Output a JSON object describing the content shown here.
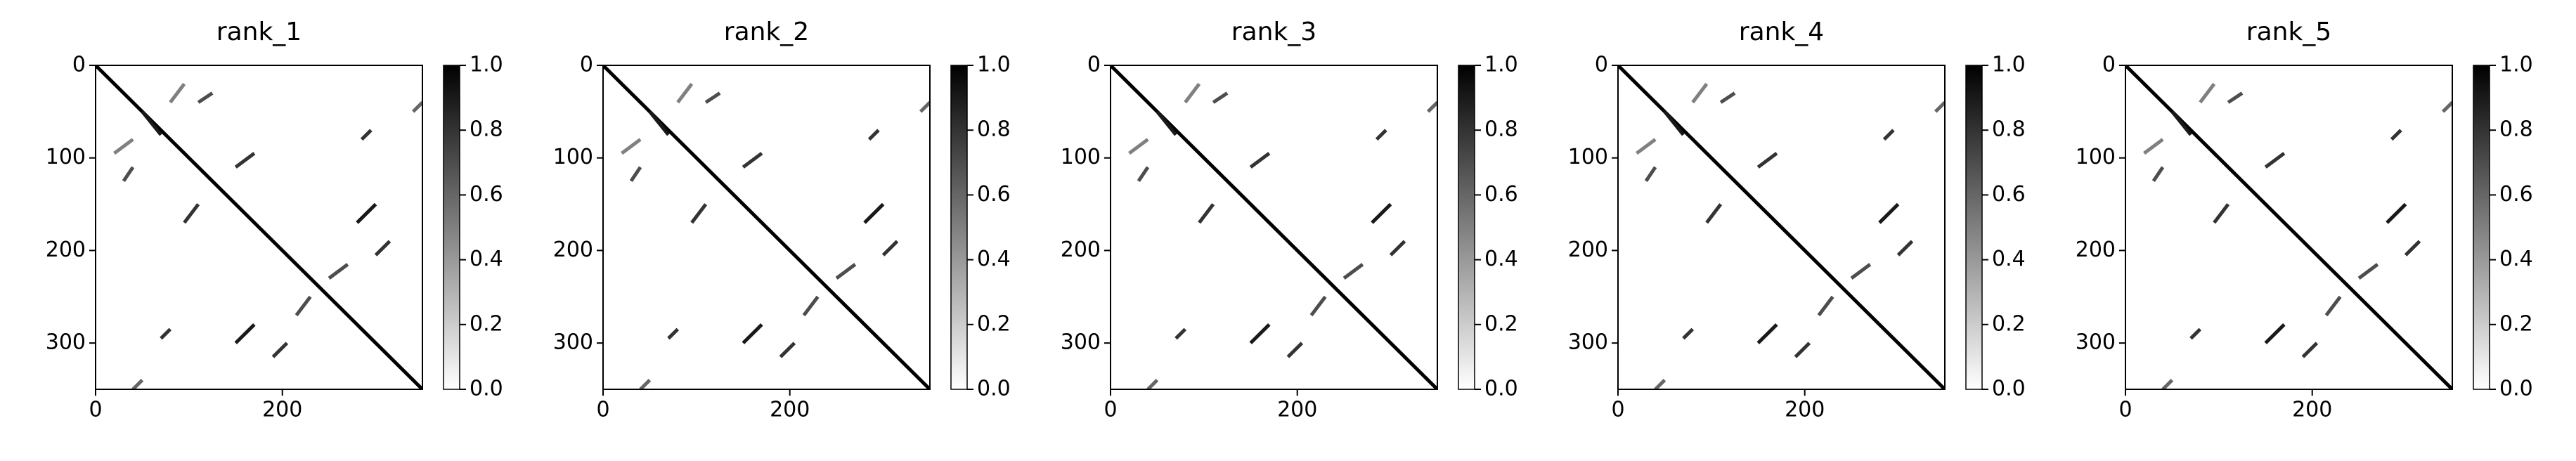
{
  "chart_data": [
    {
      "type": "heatmap",
      "title": "rank_1",
      "xlim": [
        0,
        350
      ],
      "ylim": [
        350,
        0
      ],
      "xticks": [
        0,
        200
      ],
      "yticks": [
        0,
        100,
        200,
        300
      ],
      "clim": [
        0,
        1
      ],
      "cticks": [
        {
          "value": 0,
          "label": "0.0"
        },
        0.2,
        0.4,
        0.6,
        0.8,
        {
          "value": 1,
          "label": "1.0"
        }
      ],
      "cmap": "Greys",
      "segments": [
        {
          "x": [
            0,
            350
          ],
          "y": [
            0,
            350
          ],
          "value": 1
        },
        {
          "x": [
            50,
            70
          ],
          "y": [
            50,
            75
          ],
          "value": 0.9
        },
        {
          "x": [
            20,
            40
          ],
          "y": [
            95,
            80
          ],
          "value": 0.5
        },
        {
          "x": [
            80,
            95
          ],
          "y": [
            40,
            20
          ],
          "value": 0.5
        },
        {
          "x": [
            110,
            125
          ],
          "y": [
            40,
            30
          ],
          "value": 0.7
        },
        {
          "x": [
            30,
            40
          ],
          "y": [
            125,
            110
          ],
          "value": 0.7
        },
        {
          "x": [
            150,
            170
          ],
          "y": [
            110,
            95
          ],
          "value": 0.8
        },
        {
          "x": [
            95,
            110
          ],
          "y": [
            170,
            150
          ],
          "value": 0.8
        },
        {
          "x": [
            280,
            300
          ],
          "y": [
            170,
            150
          ],
          "value": 0.9
        },
        {
          "x": [
            150,
            170
          ],
          "y": [
            300,
            280
          ],
          "value": 0.9
        },
        {
          "x": [
            300,
            315
          ],
          "y": [
            205,
            190
          ],
          "value": 0.8
        },
        {
          "x": [
            190,
            205
          ],
          "y": [
            315,
            300
          ],
          "value": 0.8
        },
        {
          "x": [
            285,
            295
          ],
          "y": [
            80,
            70
          ],
          "value": 0.8
        },
        {
          "x": [
            70,
            80
          ],
          "y": [
            295,
            285
          ],
          "value": 0.8
        },
        {
          "x": [
            340,
            350
          ],
          "y": [
            50,
            40
          ],
          "value": 0.6
        },
        {
          "x": [
            40,
            50
          ],
          "y": [
            350,
            340
          ],
          "value": 0.6
        },
        {
          "x": [
            250,
            270
          ],
          "y": [
            230,
            215
          ],
          "value": 0.7
        },
        {
          "x": [
            215,
            230
          ],
          "y": [
            270,
            250
          ],
          "value": 0.7
        }
      ]
    },
    {
      "type": "heatmap",
      "title": "rank_2",
      "xlim": [
        0,
        350
      ],
      "ylim": [
        350,
        0
      ],
      "xticks": [
        0,
        200
      ],
      "yticks": [
        0,
        100,
        200,
        300
      ],
      "clim": [
        0,
        1
      ],
      "cticks": [
        {
          "value": 0,
          "label": "0.0"
        },
        0.2,
        0.4,
        0.6,
        0.8,
        {
          "value": 1,
          "label": "1.0"
        }
      ],
      "cmap": "Greys",
      "segments": [
        {
          "x": [
            0,
            350
          ],
          "y": [
            0,
            350
          ],
          "value": 1
        },
        {
          "x": [
            50,
            70
          ],
          "y": [
            50,
            75
          ],
          "value": 0.9
        },
        {
          "x": [
            20,
            40
          ],
          "y": [
            95,
            80
          ],
          "value": 0.5
        },
        {
          "x": [
            80,
            95
          ],
          "y": [
            40,
            20
          ],
          "value": 0.5
        },
        {
          "x": [
            110,
            125
          ],
          "y": [
            40,
            30
          ],
          "value": 0.7
        },
        {
          "x": [
            30,
            40
          ],
          "y": [
            125,
            110
          ],
          "value": 0.7
        },
        {
          "x": [
            150,
            170
          ],
          "y": [
            110,
            95
          ],
          "value": 0.8
        },
        {
          "x": [
            95,
            110
          ],
          "y": [
            170,
            150
          ],
          "value": 0.8
        },
        {
          "x": [
            280,
            300
          ],
          "y": [
            170,
            150
          ],
          "value": 0.9
        },
        {
          "x": [
            150,
            170
          ],
          "y": [
            300,
            280
          ],
          "value": 0.9
        },
        {
          "x": [
            300,
            315
          ],
          "y": [
            205,
            190
          ],
          "value": 0.8
        },
        {
          "x": [
            190,
            205
          ],
          "y": [
            315,
            300
          ],
          "value": 0.8
        },
        {
          "x": [
            285,
            295
          ],
          "y": [
            80,
            70
          ],
          "value": 0.8
        },
        {
          "x": [
            70,
            80
          ],
          "y": [
            295,
            285
          ],
          "value": 0.8
        },
        {
          "x": [
            340,
            350
          ],
          "y": [
            50,
            40
          ],
          "value": 0.6
        },
        {
          "x": [
            40,
            50
          ],
          "y": [
            350,
            340
          ],
          "value": 0.6
        },
        {
          "x": [
            250,
            270
          ],
          "y": [
            230,
            215
          ],
          "value": 0.7
        },
        {
          "x": [
            215,
            230
          ],
          "y": [
            270,
            250
          ],
          "value": 0.7
        }
      ]
    },
    {
      "type": "heatmap",
      "title": "rank_3",
      "xlim": [
        0,
        350
      ],
      "ylim": [
        350,
        0
      ],
      "xticks": [
        0,
        200
      ],
      "yticks": [
        0,
        100,
        200,
        300
      ],
      "clim": [
        0,
        1
      ],
      "cticks": [
        {
          "value": 0,
          "label": "0.0"
        },
        0.2,
        0.4,
        0.6,
        0.8,
        {
          "value": 1,
          "label": "1.0"
        }
      ],
      "cmap": "Greys",
      "segments": [
        {
          "x": [
            0,
            350
          ],
          "y": [
            0,
            350
          ],
          "value": 1
        },
        {
          "x": [
            50,
            70
          ],
          "y": [
            50,
            75
          ],
          "value": 0.9
        },
        {
          "x": [
            20,
            40
          ],
          "y": [
            95,
            80
          ],
          "value": 0.5
        },
        {
          "x": [
            80,
            95
          ],
          "y": [
            40,
            20
          ],
          "value": 0.5
        },
        {
          "x": [
            110,
            125
          ],
          "y": [
            40,
            30
          ],
          "value": 0.7
        },
        {
          "x": [
            30,
            40
          ],
          "y": [
            125,
            110
          ],
          "value": 0.7
        },
        {
          "x": [
            150,
            170
          ],
          "y": [
            110,
            95
          ],
          "value": 0.8
        },
        {
          "x": [
            95,
            110
          ],
          "y": [
            170,
            150
          ],
          "value": 0.8
        },
        {
          "x": [
            280,
            300
          ],
          "y": [
            170,
            150
          ],
          "value": 0.9
        },
        {
          "x": [
            150,
            170
          ],
          "y": [
            300,
            280
          ],
          "value": 0.9
        },
        {
          "x": [
            300,
            315
          ],
          "y": [
            205,
            190
          ],
          "value": 0.8
        },
        {
          "x": [
            190,
            205
          ],
          "y": [
            315,
            300
          ],
          "value": 0.8
        },
        {
          "x": [
            285,
            295
          ],
          "y": [
            80,
            70
          ],
          "value": 0.8
        },
        {
          "x": [
            70,
            80
          ],
          "y": [
            295,
            285
          ],
          "value": 0.8
        },
        {
          "x": [
            340,
            350
          ],
          "y": [
            50,
            40
          ],
          "value": 0.6
        },
        {
          "x": [
            40,
            50
          ],
          "y": [
            350,
            340
          ],
          "value": 0.6
        },
        {
          "x": [
            250,
            270
          ],
          "y": [
            230,
            215
          ],
          "value": 0.7
        },
        {
          "x": [
            215,
            230
          ],
          "y": [
            270,
            250
          ],
          "value": 0.7
        }
      ]
    },
    {
      "type": "heatmap",
      "title": "rank_4",
      "xlim": [
        0,
        350
      ],
      "ylim": [
        350,
        0
      ],
      "xticks": [
        0,
        200
      ],
      "yticks": [
        0,
        100,
        200,
        300
      ],
      "clim": [
        0,
        1
      ],
      "cticks": [
        {
          "value": 0,
          "label": "0.0"
        },
        0.2,
        0.4,
        0.6,
        0.8,
        {
          "value": 1,
          "label": "1.0"
        }
      ],
      "cmap": "Greys",
      "segments": [
        {
          "x": [
            0,
            350
          ],
          "y": [
            0,
            350
          ],
          "value": 1
        },
        {
          "x": [
            50,
            70
          ],
          "y": [
            50,
            75
          ],
          "value": 0.9
        },
        {
          "x": [
            20,
            40
          ],
          "y": [
            95,
            80
          ],
          "value": 0.5
        },
        {
          "x": [
            80,
            95
          ],
          "y": [
            40,
            20
          ],
          "value": 0.5
        },
        {
          "x": [
            110,
            125
          ],
          "y": [
            40,
            30
          ],
          "value": 0.7
        },
        {
          "x": [
            30,
            40
          ],
          "y": [
            125,
            110
          ],
          "value": 0.7
        },
        {
          "x": [
            150,
            170
          ],
          "y": [
            110,
            95
          ],
          "value": 0.8
        },
        {
          "x": [
            95,
            110
          ],
          "y": [
            170,
            150
          ],
          "value": 0.8
        },
        {
          "x": [
            280,
            300
          ],
          "y": [
            170,
            150
          ],
          "value": 0.9
        },
        {
          "x": [
            150,
            170
          ],
          "y": [
            300,
            280
          ],
          "value": 0.9
        },
        {
          "x": [
            300,
            315
          ],
          "y": [
            205,
            190
          ],
          "value": 0.8
        },
        {
          "x": [
            190,
            205
          ],
          "y": [
            315,
            300
          ],
          "value": 0.8
        },
        {
          "x": [
            285,
            295
          ],
          "y": [
            80,
            70
          ],
          "value": 0.8
        },
        {
          "x": [
            70,
            80
          ],
          "y": [
            295,
            285
          ],
          "value": 0.8
        },
        {
          "x": [
            340,
            350
          ],
          "y": [
            50,
            40
          ],
          "value": 0.6
        },
        {
          "x": [
            40,
            50
          ],
          "y": [
            350,
            340
          ],
          "value": 0.6
        },
        {
          "x": [
            250,
            270
          ],
          "y": [
            230,
            215
          ],
          "value": 0.7
        },
        {
          "x": [
            215,
            230
          ],
          "y": [
            270,
            250
          ],
          "value": 0.7
        }
      ]
    },
    {
      "type": "heatmap",
      "title": "rank_5",
      "xlim": [
        0,
        350
      ],
      "ylim": [
        350,
        0
      ],
      "xticks": [
        0,
        200
      ],
      "yticks": [
        0,
        100,
        200,
        300
      ],
      "clim": [
        0,
        1
      ],
      "cticks": [
        {
          "value": 0,
          "label": "0.0"
        },
        0.2,
        0.4,
        0.6,
        0.8,
        {
          "value": 1,
          "label": "1.0"
        }
      ],
      "cmap": "Greys",
      "segments": [
        {
          "x": [
            0,
            350
          ],
          "y": [
            0,
            350
          ],
          "value": 1
        },
        {
          "x": [
            50,
            70
          ],
          "y": [
            50,
            75
          ],
          "value": 0.9
        },
        {
          "x": [
            20,
            40
          ],
          "y": [
            95,
            80
          ],
          "value": 0.5
        },
        {
          "x": [
            80,
            95
          ],
          "y": [
            40,
            20
          ],
          "value": 0.5
        },
        {
          "x": [
            110,
            125
          ],
          "y": [
            40,
            30
          ],
          "value": 0.7
        },
        {
          "x": [
            30,
            40
          ],
          "y": [
            125,
            110
          ],
          "value": 0.7
        },
        {
          "x": [
            150,
            170
          ],
          "y": [
            110,
            95
          ],
          "value": 0.8
        },
        {
          "x": [
            95,
            110
          ],
          "y": [
            170,
            150
          ],
          "value": 0.8
        },
        {
          "x": [
            280,
            300
          ],
          "y": [
            170,
            150
          ],
          "value": 0.9
        },
        {
          "x": [
            150,
            170
          ],
          "y": [
            300,
            280
          ],
          "value": 0.9
        },
        {
          "x": [
            300,
            315
          ],
          "y": [
            205,
            190
          ],
          "value": 0.8
        },
        {
          "x": [
            190,
            205
          ],
          "y": [
            315,
            300
          ],
          "value": 0.8
        },
        {
          "x": [
            285,
            295
          ],
          "y": [
            80,
            70
          ],
          "value": 0.8
        },
        {
          "x": [
            70,
            80
          ],
          "y": [
            295,
            285
          ],
          "value": 0.8
        },
        {
          "x": [
            340,
            350
          ],
          "y": [
            50,
            40
          ],
          "value": 0.6
        },
        {
          "x": [
            40,
            50
          ],
          "y": [
            350,
            340
          ],
          "value": 0.6
        },
        {
          "x": [
            250,
            270
          ],
          "y": [
            230,
            215
          ],
          "value": 0.7
        },
        {
          "x": [
            215,
            230
          ],
          "y": [
            270,
            250
          ],
          "value": 0.7
        }
      ]
    }
  ]
}
